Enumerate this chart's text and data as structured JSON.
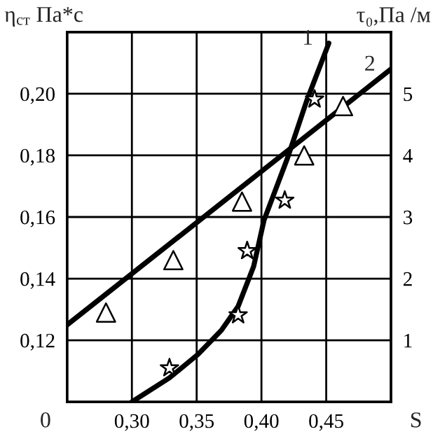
{
  "chart_data": {
    "type": "line",
    "ylabel": "η$_{ст}$ Па*с",
    "y2label": "τ₀,Па /м",
    "xlabel": "S",
    "xlim": [
      0.25,
      0.5
    ],
    "xticks": [
      {
        "value": 0.3,
        "label": "0,30"
      },
      {
        "value": 0.35,
        "label": "0,35"
      },
      {
        "value": 0.4,
        "label": "0,40"
      },
      {
        "value": 0.45,
        "label": "0,45"
      }
    ],
    "ylim": [
      0.1,
      0.22
    ],
    "yticks": [
      {
        "value": 0.12,
        "label": "0,12"
      },
      {
        "value": 0.14,
        "label": "0,14"
      },
      {
        "value": 0.16,
        "label": "0,16"
      },
      {
        "value": 0.18,
        "label": "0,18"
      },
      {
        "value": 0.2,
        "label": "0,20"
      }
    ],
    "y2lim": [
      0,
      6
    ],
    "y2ticks": [
      1,
      2,
      3,
      4,
      5
    ],
    "grid": true,
    "series": [
      {
        "name": "2",
        "color": "#000000",
        "marker": "none",
        "x": [
          0.25,
          0.5
        ],
        "values": [
          0.125,
          0.208
        ]
      },
      {
        "type": "scatter",
        "color": "#000000",
        "marker": "triangle",
        "x": [
          0.28,
          0.332,
          0.385,
          0.433,
          0.463
        ],
        "values": [
          0.129,
          0.146,
          0.165,
          0.18,
          0.196
        ]
      },
      {
        "name": "1",
        "axis": "y2",
        "color": "#000000",
        "marker": "none",
        "x": [
          0.3,
          0.329,
          0.351,
          0.369,
          0.382,
          0.394,
          0.402,
          0.42,
          0.435,
          0.452
        ],
        "values": [
          0,
          0.39,
          0.77,
          1.16,
          1.55,
          2.2,
          2.95,
          3.95,
          4.89,
          5.82
        ]
      },
      {
        "type": "scatter",
        "axis": "y2",
        "color": "#000000",
        "marker": "star",
        "x": [
          0.329,
          0.382,
          0.389,
          0.418,
          0.441
        ],
        "values": [
          0.55,
          1.41,
          2.45,
          3.27,
          4.91
        ]
      }
    ],
    "annotations": [
      "0"
    ]
  }
}
